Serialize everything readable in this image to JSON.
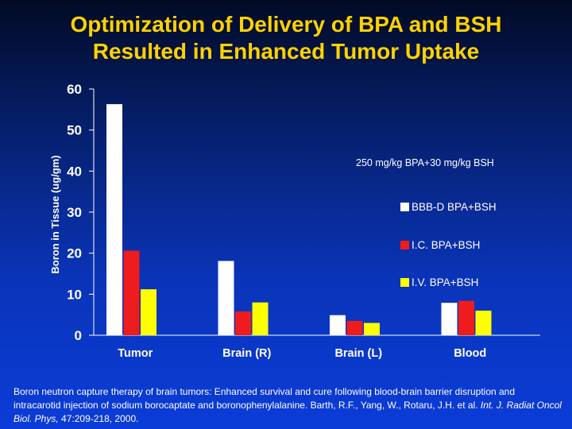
{
  "title": {
    "line1": "Optimization of Delivery of BPA and BSH",
    "line2": "Resulted in Enhanced Tumor Uptake"
  },
  "chart_data": {
    "type": "bar",
    "ylabel": "Boron in Tissue (ug/gm)",
    "xlabel": "",
    "ylim": [
      0,
      60
    ],
    "yticks": [
      0,
      10,
      20,
      30,
      40,
      50,
      60
    ],
    "categories": [
      "Tumor",
      "Brain (R)",
      "Brain (L)",
      "Blood"
    ],
    "annotation": "250 mg/kg BPA+30 mg/kg BSH",
    "legend_position": "right",
    "series": [
      {
        "name": "BBB-D BPA+BSH",
        "color": "#ffffff",
        "values": [
          56.3,
          18.1,
          4.9,
          7.9
        ]
      },
      {
        "name": "I.C. BPA+BSH",
        "color": "#ee1c1c",
        "values": [
          20.6,
          5.8,
          3.5,
          8.4
        ]
      },
      {
        "name": "I.V. BPA+BSH",
        "color": "#ffff00",
        "values": [
          11.2,
          8.0,
          3.0,
          6.0
        ]
      }
    ]
  },
  "citation": {
    "text": "Boron neutron capture therapy of brain tumors: Enhanced survival and cure following blood-brain barrier disruption and intracarotid injection of sodium borocaptate and boronophenylalanine. Barth, R.F., Yang, W., Rotaru, J.H. et al.",
    "journal": "Int. J. Radiat Oncol Biol. Phys,",
    "ref": "47:209-218, 2000."
  }
}
